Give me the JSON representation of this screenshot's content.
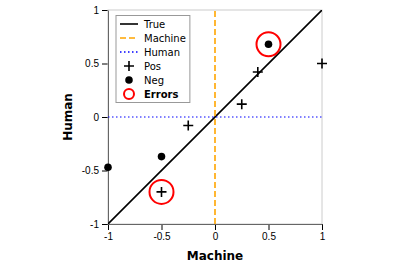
{
  "chart_data": {
    "type": "scatter",
    "xlabel": "Machine",
    "ylabel": "Human",
    "xlim": [
      -1.0,
      1.0
    ],
    "ylim": [
      -1.0,
      1.0
    ],
    "xticks": [
      -1,
      -0.5,
      0,
      0.5,
      1
    ],
    "yticks": [
      -1,
      -0.5,
      0,
      0.5,
      1
    ],
    "legend": "upper left",
    "series": [
      {
        "name": "True",
        "type": "line",
        "color": "black",
        "line_style": "solid",
        "x": [
          -1,
          1
        ],
        "values": [
          -1,
          1
        ]
      },
      {
        "name": "Machine",
        "type": "line",
        "color": "orange",
        "line_style": "dashed",
        "x": [
          0,
          0
        ],
        "values": [
          -1,
          1
        ]
      },
      {
        "name": "Human",
        "type": "line",
        "color": "blue",
        "line_style": "dotted",
        "x": [
          -1,
          1
        ],
        "values": [
          0,
          0
        ]
      },
      {
        "name": "Pos",
        "type": "scatter",
        "color": "black",
        "marker": "plus",
        "x": [
          -0.5,
          -0.25,
          0.25,
          0.4,
          1.0
        ],
        "values": [
          -0.7,
          -0.08,
          0.12,
          0.42,
          0.5
        ]
      },
      {
        "name": "Neg",
        "type": "scatter",
        "color": "black",
        "marker": "circle",
        "x": [
          -1.0,
          -0.5,
          0.5
        ],
        "values": [
          -0.47,
          -0.37,
          0.68
        ]
      },
      {
        "name": "Errors",
        "type": "scatter",
        "color": "red",
        "marker": "ring",
        "x": [
          -0.5,
          0.5
        ],
        "values": [
          -0.7,
          0.68
        ]
      }
    ]
  }
}
